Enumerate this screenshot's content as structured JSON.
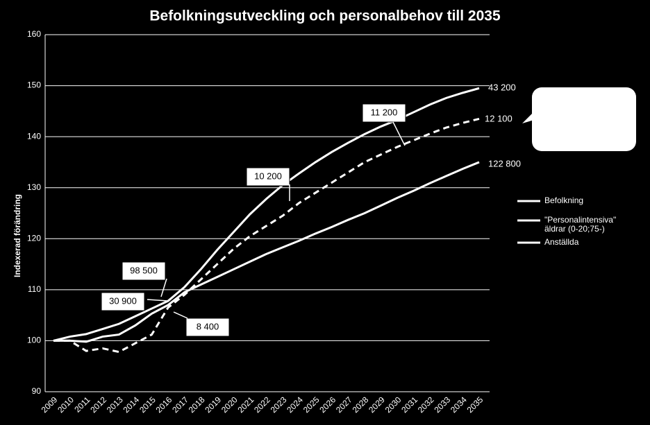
{
  "chart_data": {
    "type": "line",
    "title": "Befolkningsutveckling och personalbehov till 2035",
    "ylabel": "Indexerad förändring",
    "categories": [
      2009,
      2010,
      2011,
      2012,
      2013,
      2014,
      2015,
      2016,
      2017,
      2018,
      2019,
      2020,
      2021,
      2022,
      2023,
      2024,
      2025,
      2026,
      2027,
      2028,
      2029,
      2030,
      2031,
      2032,
      2033,
      2034,
      2035
    ],
    "ylim": [
      90,
      160
    ],
    "yticks": [
      90,
      100,
      110,
      120,
      130,
      140,
      150,
      160
    ],
    "grid": true,
    "series": [
      {
        "name": "Befolkning",
        "color": "#ffffff",
        "dashed": false,
        "values": [
          100,
          100,
          99.8,
          100.8,
          101.2,
          103,
          105.3,
          107,
          109.5,
          111,
          112.5,
          114,
          115.5,
          117,
          118.3,
          119.6,
          121,
          122.3,
          123.7,
          125,
          126.5,
          128,
          129.4,
          130.9,
          132.3,
          133.7,
          135
        ]
      },
      {
        "name": "\"Personalintensiva\" äldrar (0-20;75-)",
        "color": "#ffffff",
        "dashed": false,
        "values": [
          100,
          100.8,
          101.3,
          102.3,
          103.3,
          104.8,
          106.3,
          107.8,
          110.5,
          114,
          117.8,
          121.3,
          124.8,
          127.8,
          130.5,
          132.8,
          135,
          137,
          138.8,
          140.5,
          142,
          143.3,
          144.8,
          146.3,
          147.6,
          148.6,
          149.5
        ]
      },
      {
        "name": "Anställda",
        "color": "#ffffff",
        "dashed": true,
        "values": [
          100,
          100,
          98,
          98.5,
          97.8,
          99.5,
          101.2,
          106.5,
          109,
          112,
          115,
          118,
          120.5,
          122.5,
          124.5,
          127,
          129,
          131,
          133,
          135,
          136.5,
          138,
          139.3,
          140.6,
          141.8,
          142.7,
          143.5
        ]
      }
    ],
    "annotations": [
      "98 500",
      "30 900",
      "8 400",
      "10 200",
      "11 200",
      "43 200",
      "12 100",
      "122 800"
    ]
  }
}
